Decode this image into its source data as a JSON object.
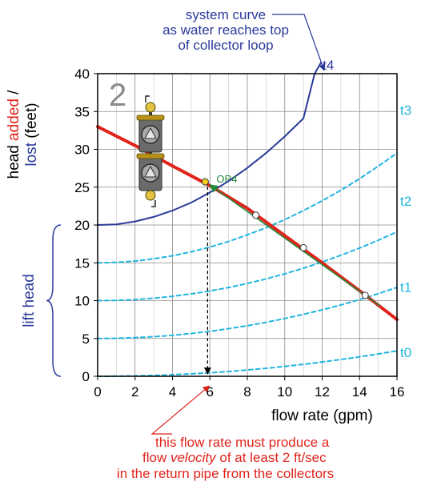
{
  "chart_data": {
    "type": "line",
    "panel_label": "2",
    "xlabel": "flow rate (gpm)",
    "ylabel_parts": [
      {
        "text": "head ",
        "color": "#000000"
      },
      {
        "text": "added",
        "color": "#e0241b"
      },
      {
        "text": " /",
        "color": "#000000"
      }
    ],
    "ylabel_line2_parts": [
      {
        "text": "lost",
        "color": "#2b3a9a"
      },
      {
        "text": " (feet)",
        "color": "#000000"
      }
    ],
    "xlim": [
      0,
      16
    ],
    "ylim": [
      0,
      40
    ],
    "xticks": [
      0,
      2,
      4,
      6,
      8,
      10,
      12,
      14,
      16
    ],
    "yticks": [
      0,
      5,
      10,
      15,
      20,
      25,
      30,
      35,
      40
    ],
    "grid": true,
    "colors": {
      "pump": "#e0241b",
      "system": "#2b3a9a",
      "dashed": "#21b5e0",
      "arrow": "#1e8a3a",
      "annotation_red": "#e0241b",
      "annotation_blue": "#2b3a9a",
      "lift": "#2b3a9a"
    },
    "series": [
      {
        "name": "t0",
        "style": "dashed",
        "x": [
          0,
          1,
          2,
          3,
          4,
          5,
          6,
          7,
          8,
          9,
          10,
          11,
          12,
          13,
          14,
          15,
          16
        ],
        "y": [
          0,
          0.01,
          0.05,
          0.12,
          0.21,
          0.33,
          0.47,
          0.64,
          0.84,
          1.06,
          1.31,
          1.59,
          1.89,
          2.22,
          2.57,
          2.95,
          3.36
        ]
      },
      {
        "name": "t1",
        "style": "dashed",
        "x": [
          0,
          1,
          2,
          3,
          4,
          5,
          6,
          7,
          8,
          9,
          10,
          11,
          12,
          13,
          14,
          15,
          16
        ],
        "y": [
          5,
          5.03,
          5.11,
          5.24,
          5.42,
          5.66,
          5.95,
          6.3,
          6.69,
          7.13,
          7.64,
          8.19,
          8.78,
          9.43,
          10.14,
          10.92,
          11.75
        ]
      },
      {
        "name": "t2",
        "style": "dashed",
        "x": [
          0,
          1,
          2,
          3,
          4,
          5,
          6,
          7,
          8,
          9,
          10,
          11,
          12,
          13,
          14,
          15,
          16
        ],
        "y": [
          10,
          10.03,
          10.14,
          10.32,
          10.57,
          10.89,
          11.28,
          11.74,
          12.27,
          12.87,
          13.55,
          14.29,
          15.11,
          16,
          16.95,
          17.98,
          19.1
        ]
      },
      {
        "name": "t3",
        "style": "dashed",
        "x": [
          0,
          1,
          2,
          3,
          4,
          5,
          6,
          7,
          8,
          9,
          10,
          11,
          12,
          13,
          14,
          15,
          16
        ],
        "y": [
          15,
          15.06,
          15.23,
          15.53,
          15.93,
          16.45,
          17.08,
          17.82,
          18.7,
          19.64,
          20.71,
          21.89,
          23.2,
          24.59,
          26.13,
          27.77,
          29.5
        ]
      },
      {
        "name": "t4",
        "style": "solid",
        "x": [
          0,
          1,
          2,
          3,
          4,
          5,
          6,
          7,
          8,
          9,
          10,
          11,
          11.6
        ],
        "y": [
          20,
          20.08,
          20.47,
          21.07,
          21.9,
          22.96,
          24.3,
          25.8,
          27.55,
          29.5,
          31.7,
          34.1,
          40
        ]
      },
      {
        "name": "",
        "style": "pump",
        "x": [
          0,
          2,
          4,
          6,
          8,
          10,
          12,
          14,
          16
        ],
        "y": [
          33,
          30.5,
          27.8,
          25.2,
          22.2,
          18.6,
          15,
          11.3,
          7.5
        ]
      }
    ],
    "points": [
      {
        "label": "OP4",
        "x": 5.75,
        "y": 25.7,
        "fill": "#f2d21b"
      },
      {
        "label": "",
        "x": 8.45,
        "y": 21.3,
        "fill": "#ffffff"
      },
      {
        "label": "",
        "x": 11,
        "y": 17,
        "fill": "#ffffff"
      },
      {
        "label": "",
        "x": 14.3,
        "y": 10.7,
        "fill": "#ffffff"
      }
    ],
    "curve_labels": [
      {
        "text": "t0",
        "y": 3.2
      },
      {
        "text": "t1",
        "y": 11.8
      },
      {
        "text": "t2",
        "y": 23.2
      },
      {
        "text": "t3",
        "y": 35.2
      }
    ],
    "t4_label": "t4",
    "lift_head_label": "lift head",
    "annotation_top": [
      "system curve",
      "as water reaches top",
      "of collector loop"
    ],
    "annotation_bottom": [
      "this flow rate must produce a",
      "flow ",
      "velocity",
      " of at least 2 ft/sec",
      "in the return pipe from the collectors"
    ]
  }
}
